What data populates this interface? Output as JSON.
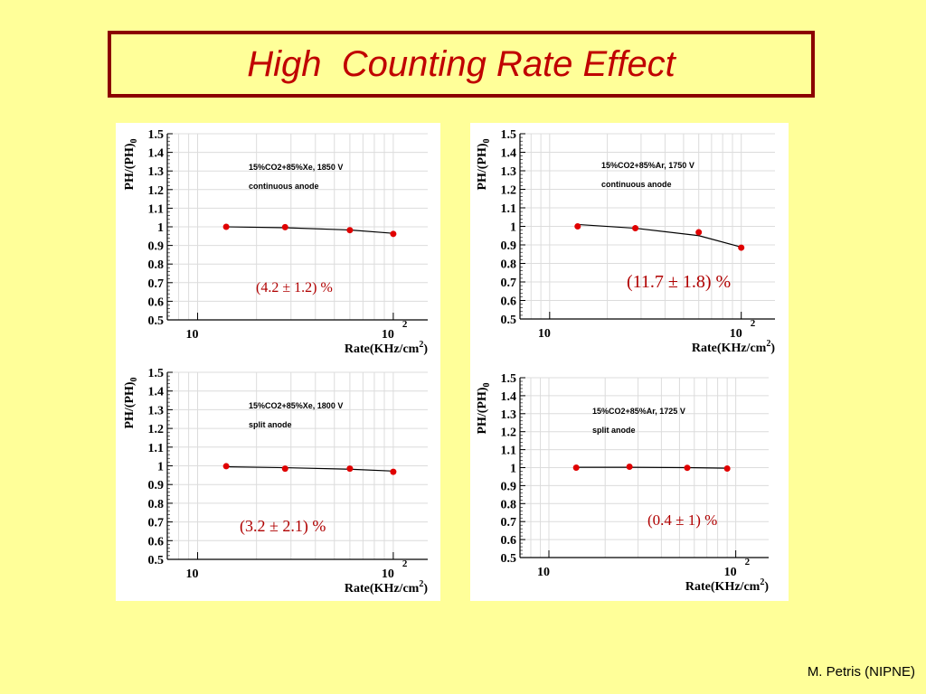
{
  "title": "High  Counting Rate Effect",
  "footer": "M. Petris (NIPNE)",
  "colors": {
    "background": "#ffff99",
    "title": "#c00000",
    "title_border": "#8b0000",
    "points": "#e00000",
    "annotation": "#b00000"
  },
  "chart_data": [
    {
      "type": "scatter",
      "ylabel": "PH/(PH)0",
      "xlabel": "Rate(KHz/cm2)",
      "xscale": "log",
      "xticks": [
        "10",
        "10 2"
      ],
      "ylim": [
        0.5,
        1.5
      ],
      "yticks": [
        "1.5",
        "1.4",
        "1.3",
        "1.2",
        "1.1",
        "1",
        "0.9",
        "0.8",
        "0.7",
        "0.6",
        "0.5"
      ],
      "grid": true,
      "notes": [
        "15%CO2+85%Xe, 1850 V",
        "continuous anode"
      ],
      "result": "(4.2 ± 1.2) %",
      "x": [
        14,
        28,
        60,
        100
      ],
      "y": [
        1.0,
        0.998,
        0.982,
        0.962
      ],
      "fit": [
        1.0,
        0.995,
        0.983,
        0.965
      ]
    },
    {
      "type": "scatter",
      "ylabel": "PH/(PH)0",
      "xlabel": "Rate(KHz/cm2)",
      "xscale": "log",
      "xticks": [
        "10",
        "10 2"
      ],
      "ylim": [
        0.5,
        1.5
      ],
      "yticks": [
        "1.5",
        "1.4",
        "1.3",
        "1.2",
        "1.1",
        "1",
        "0.9",
        "0.8",
        "0.7",
        "0.6",
        "0.5"
      ],
      "grid": true,
      "notes": [
        "15%CO2+85%Ar, 1750 V",
        "continuous anode"
      ],
      "result": "(11.7 ± 1.8) %",
      "x": [
        14,
        28,
        60,
        100
      ],
      "y": [
        1.0,
        0.99,
        0.968,
        0.885
      ],
      "fit": [
        1.01,
        0.99,
        0.95,
        0.888
      ]
    },
    {
      "type": "scatter",
      "ylabel": "PH/(PH)0",
      "xlabel": "Rate(KHz/cm2)",
      "xscale": "log",
      "xticks": [
        "10",
        "10 2"
      ],
      "ylim": [
        0.5,
        1.5
      ],
      "yticks": [
        "1.5",
        "1.4",
        "1.3",
        "1.2",
        "1.1",
        "1",
        "0.9",
        "0.8",
        "0.7",
        "0.6",
        "0.5"
      ],
      "grid": true,
      "notes": [
        "15%CO2+85%Xe, 1800 V",
        "split anode"
      ],
      "result": "(3.2 ± 2.1) %",
      "x": [
        14,
        28,
        60,
        100
      ],
      "y": [
        0.998,
        0.985,
        0.985,
        0.968
      ],
      "fit": [
        0.995,
        0.99,
        0.982,
        0.972
      ]
    },
    {
      "type": "scatter",
      "ylabel": "PH/(PH)0",
      "xlabel": "Rate(KHz/cm2)",
      "xscale": "log",
      "xticks": [
        "10",
        "10 2"
      ],
      "ylim": [
        0.5,
        1.5
      ],
      "yticks": [
        "1.5",
        "1.4",
        "1.3",
        "1.2",
        "1.1",
        "1",
        "0.9",
        "0.8",
        "0.7",
        "0.6",
        "0.5"
      ],
      "grid": true,
      "notes": [
        "15%CO2+85%Ar, 1725 V",
        "split anode"
      ],
      "result": "(0.4 ± 1) %",
      "x": [
        14,
        27,
        55,
        90
      ],
      "y": [
        1.0,
        1.005,
        0.999,
        0.995
      ],
      "fit": [
        1.002,
        1.002,
        1.0,
        0.997
      ]
    }
  ]
}
